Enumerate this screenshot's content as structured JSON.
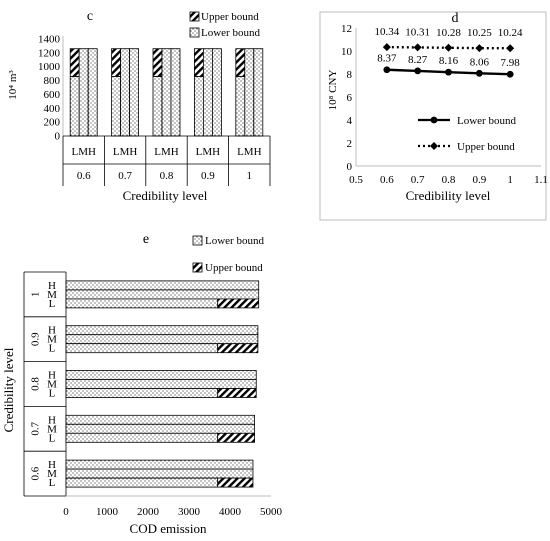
{
  "chart_data": [
    {
      "panel": "c",
      "type": "bar",
      "title": "c",
      "ylabel": "10⁴ m³",
      "xlabel": "Credibility level",
      "ylim": [
        0,
        1400
      ],
      "yticks": [
        0,
        200,
        400,
        600,
        800,
        1000,
        1200,
        1400
      ],
      "group_sublabel": "LMH",
      "categories": [
        "0.6",
        "0.7",
        "0.8",
        "0.9",
        "1"
      ],
      "bars_per_group": [
        "L",
        "M",
        "H"
      ],
      "legend": [
        "Upper bound",
        "Lower bound"
      ],
      "series": [
        {
          "name": "Lower bound",
          "values": [
            [
              860,
              1260,
              1260
            ],
            [
              860,
              1260,
              1260
            ],
            [
              860,
              1260,
              1260
            ],
            [
              860,
              1260,
              1260
            ],
            [
              860,
              1260,
              1260
            ]
          ]
        },
        {
          "name": "Upper bound",
          "values": [
            [
              1260,
              1260,
              1260
            ],
            [
              1260,
              1260,
              1260
            ],
            [
              1260,
              1260,
              1260
            ],
            [
              1260,
              1260,
              1260
            ],
            [
              1260,
              1260,
              1260
            ]
          ]
        }
      ]
    },
    {
      "panel": "d",
      "type": "line",
      "title": "d",
      "ylabel": "10⁸ CNY",
      "xlabel": "Credibility level",
      "xlim": [
        0.5,
        1.1
      ],
      "xticks": [
        "0.5",
        "0.6",
        "0.7",
        "0.8",
        "0.9",
        "1",
        "1.1"
      ],
      "ylim": [
        0,
        12
      ],
      "yticks": [
        0,
        2,
        4,
        6,
        8,
        10,
        12
      ],
      "x": [
        0.6,
        0.7,
        0.8,
        0.9,
        1.0
      ],
      "series": [
        {
          "name": "Lower bound",
          "values": [
            8.37,
            8.27,
            8.16,
            8.06,
            7.98
          ],
          "labels": [
            "8.37",
            "8.27",
            "8.16",
            "8.06",
            "7.98"
          ]
        },
        {
          "name": "Upper bound",
          "values": [
            10.34,
            10.31,
            10.28,
            10.25,
            10.24
          ],
          "labels": [
            "10.34",
            "10.31",
            "10.28",
            "10.25",
            "10.24"
          ]
        }
      ]
    },
    {
      "panel": "e",
      "type": "bar",
      "orientation": "horizontal",
      "title": "e",
      "xlabel": "COD emission",
      "ylabel": "Credibility level",
      "xlim": [
        0,
        5000
      ],
      "xticks": [
        0,
        1000,
        2000,
        3000,
        4000,
        5000
      ],
      "categories": [
        "1",
        "0.9",
        "0.8",
        "0.7",
        "0.6"
      ],
      "bars_per_group": [
        "H",
        "M",
        "L"
      ],
      "legend": [
        "Lower bound",
        "Upper bound"
      ],
      "series": [
        {
          "name": "Lower bound",
          "values": [
            [
              4700,
              4700,
              3700
            ],
            [
              4680,
              4680,
              3700
            ],
            [
              4640,
              4640,
              3700
            ],
            [
              4600,
              4600,
              3700
            ],
            [
              4560,
              4560,
              3700
            ]
          ]
        },
        {
          "name": "Upper bound",
          "values": [
            [
              4700,
              4700,
              4700
            ],
            [
              4680,
              4680,
              4680
            ],
            [
              4640,
              4640,
              4640
            ],
            [
              4600,
              4600,
              4600
            ],
            [
              4560,
              4560,
              4560
            ]
          ]
        }
      ]
    }
  ]
}
